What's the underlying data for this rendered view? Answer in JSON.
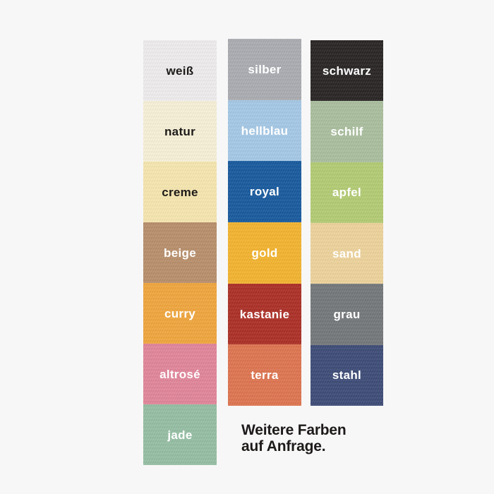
{
  "page": {
    "background_color": "#f7f7f7"
  },
  "note": {
    "line1": "Weitere Farben",
    "line2": "auf Anfrage."
  },
  "columns": [
    {
      "name": "column-1",
      "swatches": [
        {
          "label": "weiß",
          "color": "#efedee",
          "text_color": "#1d1a19"
        },
        {
          "label": "natur",
          "color": "#f8f1d8",
          "text_color": "#1d1a19"
        },
        {
          "label": "creme",
          "color": "#f7e7af",
          "text_color": "#1d1a19"
        },
        {
          "label": "beige",
          "color": "#b98f6b",
          "text_color": "#ffffff"
        },
        {
          "label": "curry",
          "color": "#f1a63c",
          "text_color": "#ffffff"
        },
        {
          "label": "altrosé",
          "color": "#e2859a",
          "text_color": "#ffffff"
        },
        {
          "label": "jade",
          "color": "#95bfa4",
          "text_color": "#ffffff"
        }
      ]
    },
    {
      "name": "column-2",
      "swatches": [
        {
          "label": "silber",
          "color": "#aaacb1",
          "text_color": "#ffffff"
        },
        {
          "label": "hellblau",
          "color": "#a5c9e7",
          "text_color": "#ffffff"
        },
        {
          "label": "royal",
          "color": "#16599e",
          "text_color": "#ffffff"
        },
        {
          "label": "gold",
          "color": "#f4b42e",
          "text_color": "#ffffff"
        },
        {
          "label": "kastanie",
          "color": "#ac2e25",
          "text_color": "#ffffff"
        },
        {
          "label": "terra",
          "color": "#df744f",
          "text_color": "#ffffff"
        }
      ]
    },
    {
      "name": "column-3",
      "swatches": [
        {
          "label": "schwarz",
          "color": "#272322",
          "text_color": "#ffffff"
        },
        {
          "label": "schilf",
          "color": "#aabf9e",
          "text_color": "#ffffff"
        },
        {
          "label": "apfel",
          "color": "#b3cc73",
          "text_color": "#ffffff"
        },
        {
          "label": "sand",
          "color": "#eed39b",
          "text_color": "#ffffff"
        },
        {
          "label": "grau",
          "color": "#737779",
          "text_color": "#ffffff"
        },
        {
          "label": "stahl",
          "color": "#3c4b77",
          "text_color": "#ffffff"
        }
      ]
    }
  ]
}
